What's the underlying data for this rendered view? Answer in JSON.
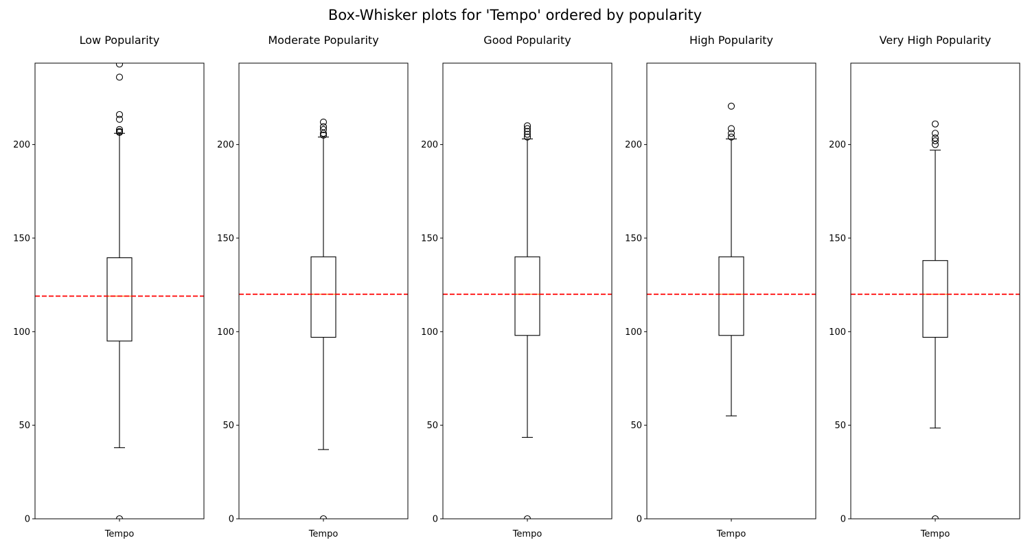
{
  "figure": {
    "suptitle": "Box-Whisker plots for 'Tempo' ordered by popularity"
  },
  "chart_data": [
    {
      "type": "box",
      "title": "Low Popularity",
      "categories": [
        "Tempo"
      ],
      "ylim": [
        0,
        243.5
      ],
      "yticks": [
        0,
        50,
        100,
        150,
        200
      ],
      "box": {
        "whisker_low": 38,
        "q1": 95,
        "median": 119,
        "q3": 139.5,
        "whisker_high": 206
      },
      "outliers": [
        0,
        206.5,
        207,
        208,
        213.5,
        216,
        236,
        243
      ],
      "mean_line": 119,
      "colors": {
        "box": "#000000",
        "median": "#ff7f0e",
        "mean_line": "#ff0000"
      }
    },
    {
      "type": "box",
      "title": "Moderate Popularity",
      "categories": [
        "Tempo"
      ],
      "ylim": [
        0,
        243.5
      ],
      "yticks": [
        0,
        50,
        100,
        150,
        200
      ],
      "box": {
        "whisker_low": 37,
        "q1": 97,
        "median": 120,
        "q3": 140,
        "whisker_high": 204
      },
      "outliers": [
        0,
        205,
        206,
        208,
        209.5,
        212
      ],
      "mean_line": 120,
      "colors": {
        "box": "#000000",
        "median": "#ff7f0e",
        "mean_line": "#ff0000"
      }
    },
    {
      "type": "box",
      "title": "Good Popularity",
      "categories": [
        "Tempo"
      ],
      "ylim": [
        0,
        243.5
      ],
      "yticks": [
        0,
        50,
        100,
        150,
        200
      ],
      "box": {
        "whisker_low": 43.5,
        "q1": 98,
        "median": 120,
        "q3": 140,
        "whisker_high": 203
      },
      "outliers": [
        0,
        204,
        205.5,
        207,
        208.5,
        210
      ],
      "mean_line": 120,
      "colors": {
        "box": "#000000",
        "median": "#ff7f0e",
        "mean_line": "#ff0000"
      }
    },
    {
      "type": "box",
      "title": "High Popularity",
      "categories": [
        "Tempo"
      ],
      "ylim": [
        0,
        243.5
      ],
      "yticks": [
        0,
        50,
        100,
        150,
        200
      ],
      "box": {
        "whisker_low": 55,
        "q1": 98,
        "median": 120,
        "q3": 140,
        "whisker_high": 203
      },
      "outliers": [
        204,
        206,
        208.5,
        220.5
      ],
      "mean_line": 120,
      "colors": {
        "box": "#000000",
        "median": "#ff7f0e",
        "mean_line": "#ff0000"
      }
    },
    {
      "type": "box",
      "title": "Very High Popularity",
      "categories": [
        "Tempo"
      ],
      "ylim": [
        0,
        243.5
      ],
      "yticks": [
        0,
        50,
        100,
        150,
        200
      ],
      "box": {
        "whisker_low": 48.5,
        "q1": 97,
        "median": 120,
        "q3": 138,
        "whisker_high": 197
      },
      "outliers": [
        0,
        200,
        202,
        203.5,
        206,
        211
      ],
      "mean_line": 120,
      "colors": {
        "box": "#000000",
        "median": "#ff7f0e",
        "mean_line": "#ff0000"
      }
    }
  ]
}
